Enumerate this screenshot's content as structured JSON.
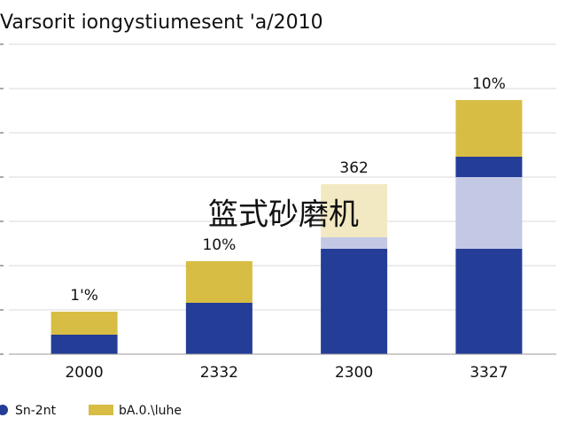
{
  "chart_data": {
    "type": "stacked-bar",
    "title": "Varsorit iongystiumesent 'a/2010",
    "watermark": "篮式砂磨机",
    "categories": [
      "2000",
      "2332",
      "2300",
      "3327"
    ],
    "series": [
      {
        "name": "Sn-2nt",
        "color": "#243d97",
        "values": [
          0.44,
          1.16,
          2.38,
          2.38
        ]
      },
      {
        "color": "#c3c8e4",
        "values": [
          0,
          0,
          0.26,
          1.62
        ]
      },
      {
        "color": "#243d97",
        "values": [
          0,
          0,
          0,
          0.46
        ]
      },
      {
        "name": "bA.0.\\luhe",
        "color": "#d8bd45",
        "colors": [
          "#d8bd45",
          "#d8bd45",
          "#f2e9c2",
          "#d8bd45"
        ],
        "values": [
          0.52,
          0.94,
          1.2,
          1.28
        ]
      }
    ],
    "annotations": [
      "1'%",
      "10%",
      "362",
      "10%"
    ],
    "ylim": [
      0,
      7
    ],
    "yticks": [
      0,
      1,
      2,
      3,
      4,
      5,
      6,
      7
    ],
    "grid": true
  }
}
